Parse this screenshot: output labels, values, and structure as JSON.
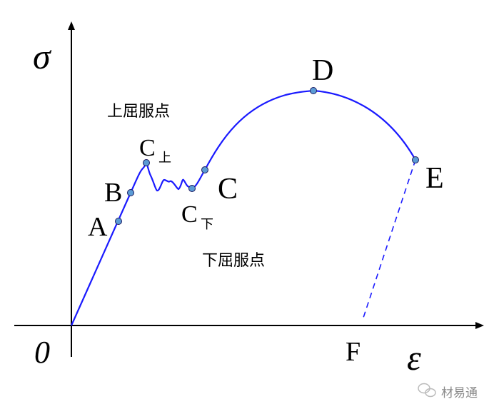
{
  "axes": {
    "y_symbol": "σ",
    "x_symbol": "ε",
    "origin": "0"
  },
  "points": {
    "A": "A",
    "B": "B",
    "C_upper": "C",
    "C_upper_sub": "上",
    "C_lower": "C",
    "C_lower_sub": "下",
    "C": "C",
    "D": "D",
    "E": "E",
    "F": "F"
  },
  "annotations": {
    "upper_yield": "上屈服点",
    "lower_yield": "下屈服点"
  },
  "watermark": {
    "text": "材易通",
    "icon": "wechat-icon"
  },
  "colors": {
    "curve": "#1a1aff",
    "point_fill": "#5b9bd5",
    "axis": "#000000"
  }
}
